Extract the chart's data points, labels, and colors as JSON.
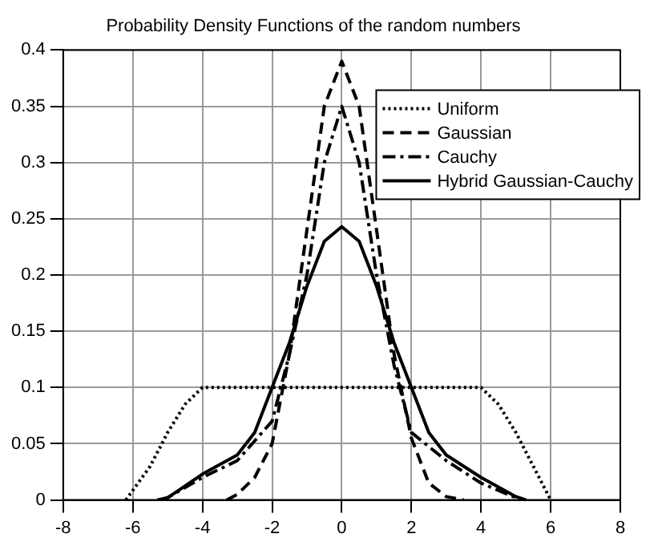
{
  "chart_data": {
    "type": "line",
    "title": "Probability Density Functions of the random numbers",
    "xlim": [
      -8,
      8
    ],
    "xticks": [
      -8,
      -6,
      -4,
      -2,
      0,
      2,
      4,
      6,
      8
    ],
    "ylim": [
      0,
      0.4
    ],
    "yticks": [
      0,
      0.05,
      0.1,
      0.15,
      0.2,
      0.25,
      0.3,
      0.35,
      0.4
    ],
    "grid": true,
    "legend": "top right",
    "marker": "none",
    "series": [
      {
        "name": "Uniform",
        "color": "#000000",
        "line_style": "dotted",
        "x": [
          -6.2,
          -5.5,
          -5,
          -4.5,
          -4,
          0,
          4,
          4.5,
          5,
          5.5,
          6
        ],
        "values": [
          0,
          0.03,
          0.06,
          0.085,
          0.1,
          0.1,
          0.1,
          0.085,
          0.06,
          0.03,
          0
        ]
      },
      {
        "name": "Gaussian",
        "color": "#000000",
        "line_style": "dashed",
        "x": [
          -3.3,
          -3,
          -2.5,
          -2,
          -1.5,
          -1,
          -0.5,
          0,
          0.5,
          1,
          1.5,
          2,
          2.5,
          3,
          3.5
        ],
        "values": [
          0,
          0.005,
          0.02,
          0.05,
          0.13,
          0.24,
          0.35,
          0.39,
          0.35,
          0.24,
          0.13,
          0.055,
          0.015,
          0.003,
          0
        ]
      },
      {
        "name": "Cauchy",
        "color": "#000000",
        "line_style": "dashdot",
        "x": [
          -5.2,
          -5,
          -4,
          -3,
          -2,
          -1.5,
          -1,
          -0.5,
          0,
          0.5,
          1,
          1.5,
          2,
          3,
          4,
          5,
          5.2
        ],
        "values": [
          0,
          0.002,
          0.02,
          0.035,
          0.07,
          0.13,
          0.2,
          0.3,
          0.35,
          0.3,
          0.2,
          0.12,
          0.06,
          0.035,
          0.015,
          0.002,
          0
        ]
      },
      {
        "name": "Hybrid Gaussian-Cauchy",
        "color": "#000000",
        "line_style": "solid",
        "x": [
          -5.3,
          -5,
          -4,
          -3,
          -2.5,
          -2,
          -1.5,
          -1,
          -0.5,
          0,
          0.5,
          1,
          1.5,
          2,
          2.5,
          3,
          4,
          5,
          5.3
        ],
        "values": [
          0,
          0.002,
          0.023,
          0.04,
          0.06,
          0.1,
          0.14,
          0.19,
          0.23,
          0.243,
          0.23,
          0.19,
          0.14,
          0.1,
          0.06,
          0.04,
          0.02,
          0.003,
          0
        ]
      }
    ]
  }
}
